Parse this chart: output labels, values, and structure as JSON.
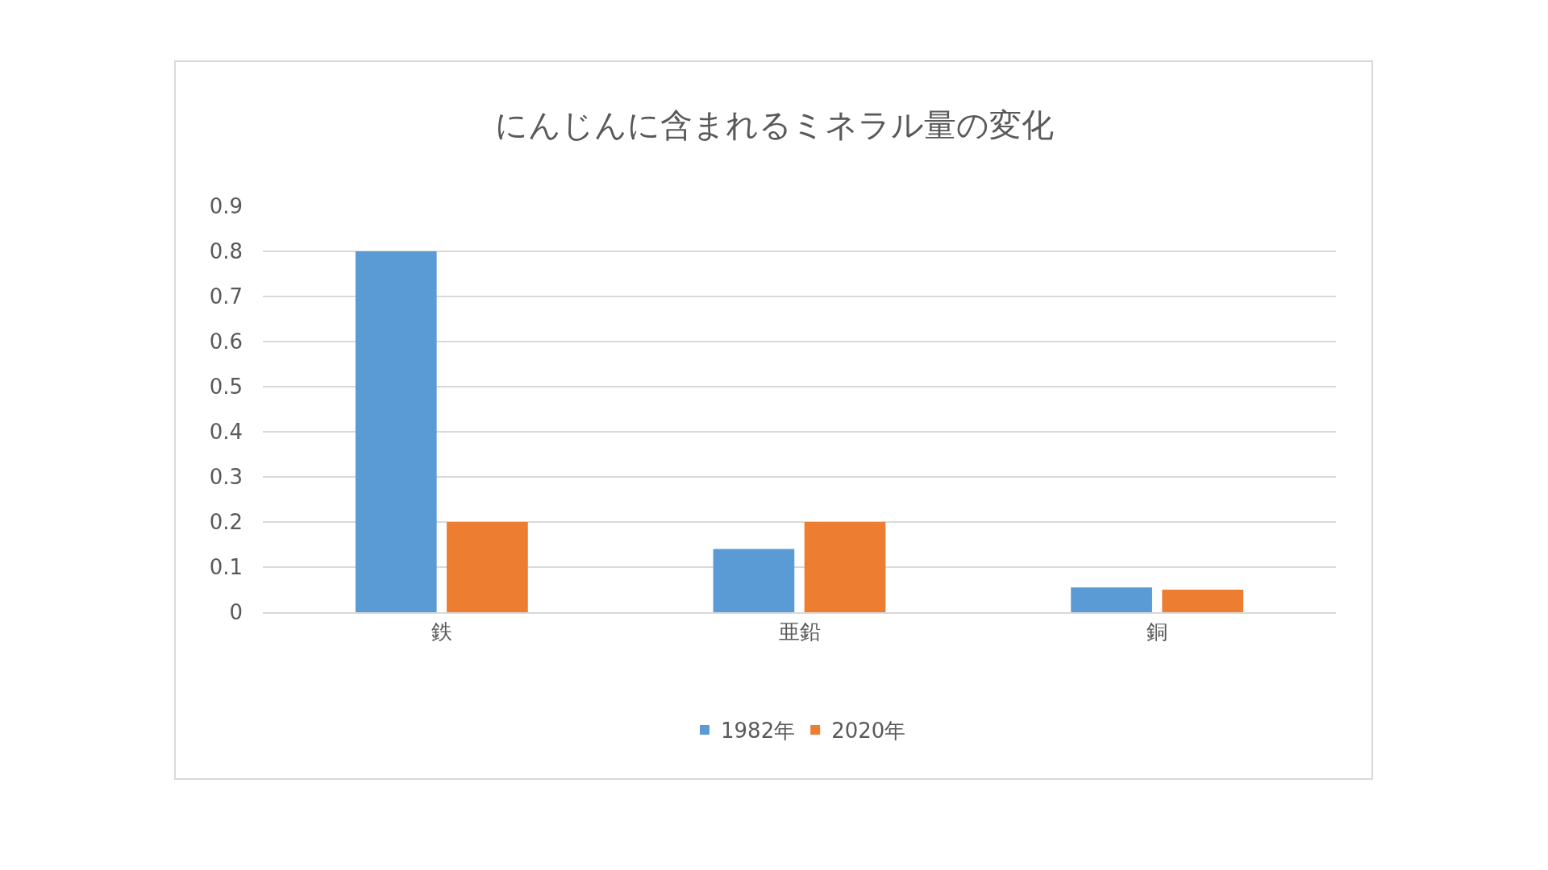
{
  "chart_data": {
    "type": "bar",
    "title": "にんじんに含まれるミネラル量の変化",
    "categories": [
      "鉄",
      "亜鉛",
      "銅"
    ],
    "series": [
      {
        "name": "1982年",
        "color": "#5b9bd5",
        "values": [
          0.8,
          0.14,
          0.055
        ]
      },
      {
        "name": "2020年",
        "color": "#ed7d31",
        "values": [
          0.2,
          0.2,
          0.05
        ]
      }
    ],
    "ylim": [
      0,
      0.9
    ],
    "yticks": [
      {
        "value": 0,
        "label": "0"
      },
      0.1,
      0.2,
      0.3,
      0.4,
      0.5,
      0.6,
      0.7,
      0.8,
      0.9
    ],
    "grid": "y",
    "legend": "bottom"
  }
}
